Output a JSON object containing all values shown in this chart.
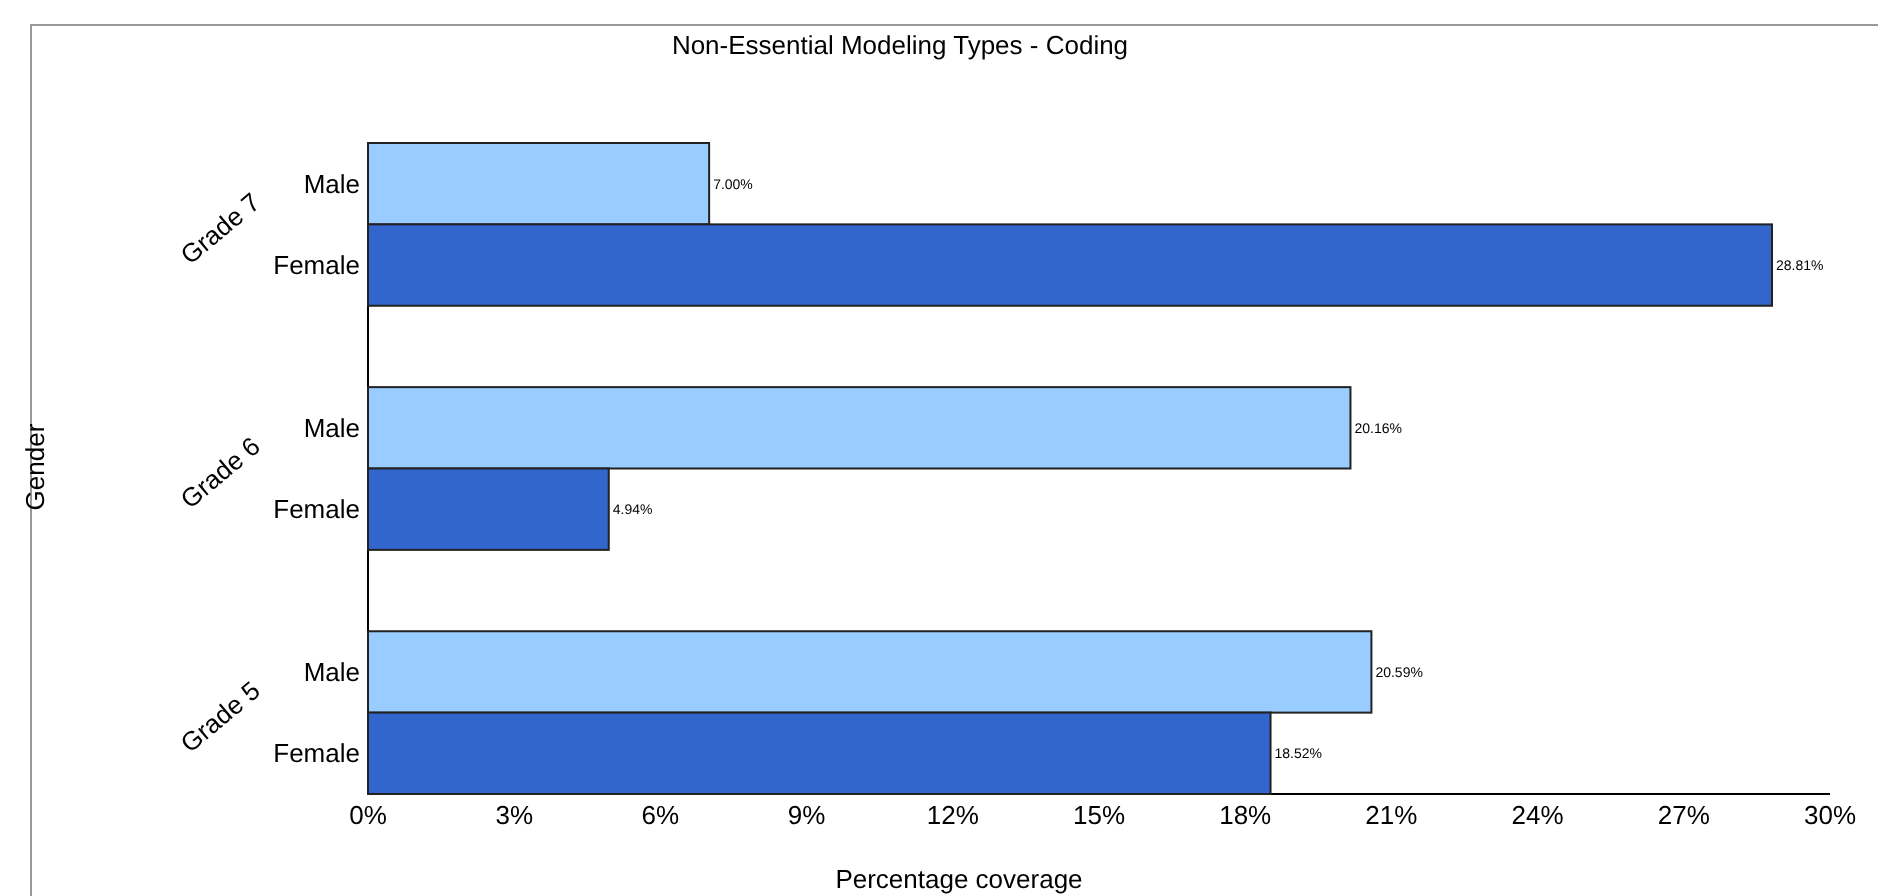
{
  "chart_data": {
    "type": "bar",
    "orientation": "horizontal",
    "title": "Non-Essential Modeling Types - Coding",
    "xlabel": "Percentage coverage",
    "ylabel": "Gender",
    "categories": [
      "Grade 7",
      "Grade 6",
      "Grade 5"
    ],
    "series": [
      {
        "name": "Male",
        "color": "#99ccff",
        "values": [
          7.0,
          20.16,
          20.59
        ],
        "value_labels": [
          "7.00%",
          "20.16%",
          "20.59%"
        ]
      },
      {
        "name": "Female",
        "color": "#3366cc",
        "values": [
          28.81,
          4.94,
          18.52
        ],
        "value_labels": [
          "28.81%",
          "4.94%",
          "18.52%"
        ]
      }
    ],
    "xlim": [
      0,
      30
    ],
    "xticks": [
      {
        "value": 0,
        "label": "0%"
      },
      {
        "value": 3,
        "label": "3%"
      },
      {
        "value": 6,
        "label": "6%"
      },
      {
        "value": 9,
        "label": "9%"
      },
      {
        "value": 12,
        "label": "12%"
      },
      {
        "value": 15,
        "label": "15%"
      },
      {
        "value": 18,
        "label": "18%"
      },
      {
        "value": 21,
        "label": "21%"
      },
      {
        "value": 24,
        "label": "24%"
      },
      {
        "value": 27,
        "label": "27%"
      },
      {
        "value": 30,
        "label": "30%"
      }
    ],
    "grid": false,
    "legend": false
  }
}
